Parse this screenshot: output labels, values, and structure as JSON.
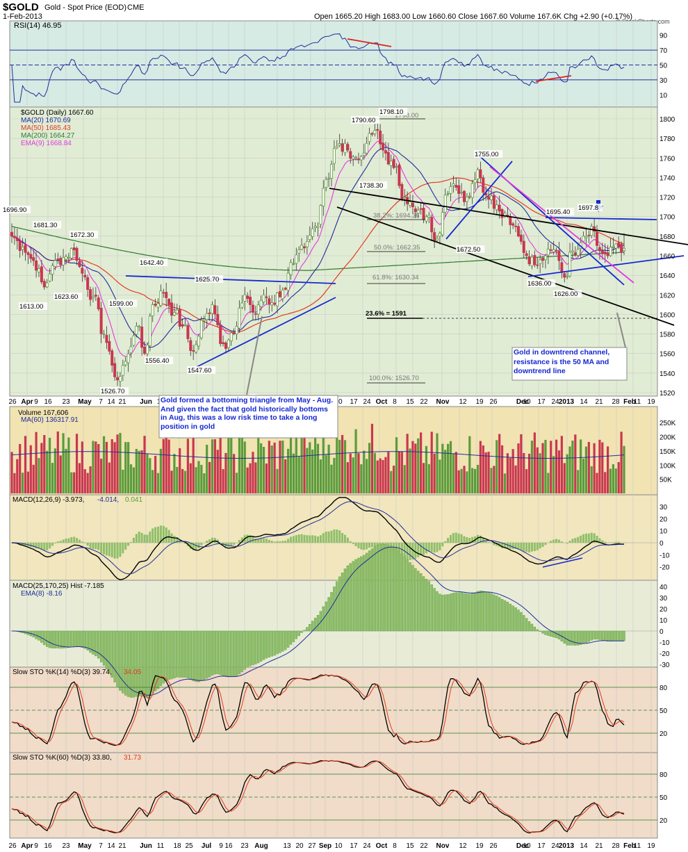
{
  "header": {
    "symbol": "$GOLD",
    "name": "Gold - Spot Price (EOD)",
    "exchange": "CME",
    "date": "1-Feb-2013",
    "ohlc_text": "Open 1665.20  High 1683.00  Low 1660.60  Close 1667.60  Volume 167.6K  Chg +2.90 (+0.17%)",
    "credit": "© StockCharts.com"
  },
  "colors": {
    "panel_rsi": "#d6ebe3",
    "panel_price": "#e1ecd4",
    "panel_vol": "#f1e3b2",
    "panel_macd": "#f1e6bd",
    "panel_hist": "#e8ecd7",
    "panel_sto": "#f0dcc8",
    "up": "#5b9b3c",
    "down": "#c9374f",
    "ma20": "#1f2d9c",
    "ma50": "#e23a22",
    "ma200": "#2d7a2d",
    "ema9": "#e03be0",
    "annot_blue": "#1428d0",
    "annot_red": "#e01e1e"
  },
  "panels": {
    "rsi": {
      "label": "RSI(14) 46.95",
      "levels": [
        70,
        50,
        30
      ],
      "ticks": [
        "90",
        "70",
        "50",
        "30",
        "10"
      ]
    },
    "price": {
      "legend": [
        {
          "text": "$GOLD (Daily) 1667.60",
          "color": "#000000"
        },
        {
          "text": "MA(20) 1670.69",
          "color": "#1f2d9c"
        },
        {
          "text": "MA(50) 1685.43",
          "color": "#e23a22"
        },
        {
          "text": "MA(200) 1664.27",
          "color": "#2d7a2d"
        },
        {
          "text": "EMA(9) 1668.84",
          "color": "#e03be0"
        }
      ],
      "y_ticks": [
        "1800",
        "1780",
        "1760",
        "1740",
        "1720",
        "1700",
        "1680",
        "1660",
        "1640",
        "1620",
        "1600",
        "1580",
        "1560",
        "1540",
        "1520"
      ],
      "ylim": [
        1510,
        1810
      ]
    },
    "volume": {
      "label1": "Volume 167,606",
      "label2": "MA(60) 136317.91",
      "ticks": [
        "250K",
        "200K",
        "150K",
        "100K",
        "50K"
      ]
    },
    "macd": {
      "label_a": "MACD(12,26,9) -3.973,",
      "label_b": "-4.014,",
      "label_c": "0.041",
      "ticks": [
        "30",
        "20",
        "10",
        "0",
        "-10",
        "-20"
      ]
    },
    "macd2": {
      "label1": "MACD(25,170,25) Hist -7.185",
      "label2": "EMA(8) -8.16",
      "ticks": [
        "40",
        "30",
        "20",
        "10",
        "0",
        "-10",
        "-20",
        "-30"
      ]
    },
    "sto14": {
      "label_a": "Slow STO %K(14) %D(3) 39.74,",
      "label_b": "34.05",
      "ticks": [
        "80",
        "50",
        "20"
      ]
    },
    "sto60": {
      "label_a": "Slow STO %K(60) %D(3) 33.80,",
      "label_b": "31.73",
      "ticks": [
        "80",
        "50",
        "20"
      ]
    }
  },
  "x_axis_labels": [
    "26",
    "Apr",
    "9",
    "16",
    "23",
    "May",
    "7",
    "14",
    "21",
    "Jun",
    "11",
    "18",
    "25",
    "Jul",
    "9",
    "16",
    "23",
    "Aug",
    "13",
    "20",
    "27",
    "Sep",
    "10",
    "17",
    "24",
    "Oct",
    "8",
    "15",
    "22",
    "Nov",
    "12",
    "19",
    "26",
    "Dec",
    "10",
    "17",
    "24",
    "2013",
    "14",
    "21",
    "28",
    "Feb",
    "11",
    "19"
  ],
  "annotations": {
    "price_labels": [
      "1696.90",
      "1681.30",
      "1672.30",
      "1613.00",
      "1623.60",
      "1642.40",
      "1599.00",
      "1625.70",
      "1556.40",
      "1547.60",
      "1526.70",
      "1790.60",
      "1798.10",
      "1738.30",
      "1755.00",
      "1672.50",
      "1695.40",
      "1697.8",
      "1636.00",
      "1626.00"
    ],
    "fib_labels": [
      "1798.00",
      "38.2%: 1694.36",
      "50.0%: 1662.35",
      "61.8%: 1630.34",
      "23.6% = 1591",
      "100.0%: 1526.70"
    ],
    "note1": "Gold formed a bottoming triangle from May - Aug.  And given the fact that gold historically bottoms in Aug, this was a low risk time to take a long position in gold",
    "note2": "Gold in downtrend channel, resistance is the 50 MA and downtrend line"
  },
  "chart_data": {
    "type": "candlestick",
    "title": "$GOLD Gold - Spot Price (EOD) CME",
    "period": "Daily, late Mar 2012 - 1-Feb-2013",
    "last": {
      "open": 1665.2,
      "high": 1683.0,
      "low": 1660.6,
      "close": 1667.6,
      "volume": 167606,
      "change": 2.9,
      "change_pct": 0.17
    },
    "anchors": [
      {
        "bar": 0,
        "close": 1680
      },
      {
        "bar": 4,
        "close": 1669
      },
      {
        "bar": 8,
        "close": 1655
      },
      {
        "bar": 12,
        "close": 1628
      },
      {
        "bar": 15,
        "close": 1650
      },
      {
        "bar": 19,
        "close": 1658
      },
      {
        "bar": 23,
        "close": 1666
      },
      {
        "bar": 26,
        "close": 1642
      },
      {
        "bar": 30,
        "close": 1618
      },
      {
        "bar": 34,
        "close": 1580
      },
      {
        "bar": 37,
        "close": 1548
      },
      {
        "bar": 39,
        "close": 1533
      },
      {
        "bar": 42,
        "close": 1552
      },
      {
        "bar": 46,
        "close": 1588
      },
      {
        "bar": 49,
        "close": 1560
      },
      {
        "bar": 52,
        "close": 1610
      },
      {
        "bar": 56,
        "close": 1622
      },
      {
        "bar": 60,
        "close": 1602
      },
      {
        "bar": 63,
        "close": 1588
      },
      {
        "bar": 67,
        "close": 1563
      },
      {
        "bar": 71,
        "close": 1595
      },
      {
        "bar": 74,
        "close": 1610
      },
      {
        "bar": 78,
        "close": 1570
      },
      {
        "bar": 82,
        "close": 1580
      },
      {
        "bar": 86,
        "close": 1620
      },
      {
        "bar": 90,
        "close": 1600
      },
      {
        "bar": 93,
        "close": 1620
      },
      {
        "bar": 96,
        "close": 1612
      },
      {
        "bar": 100,
        "close": 1625
      },
      {
        "bar": 104,
        "close": 1652
      },
      {
        "bar": 108,
        "close": 1668
      },
      {
        "bar": 112,
        "close": 1690
      },
      {
        "bar": 116,
        "close": 1738
      },
      {
        "bar": 120,
        "close": 1772
      },
      {
        "bar": 124,
        "close": 1768
      },
      {
        "bar": 128,
        "close": 1758
      },
      {
        "bar": 131,
        "close": 1775
      },
      {
        "bar": 134,
        "close": 1788
      },
      {
        "bar": 137,
        "close": 1768
      },
      {
        "bar": 141,
        "close": 1750
      },
      {
        "bar": 145,
        "close": 1720
      },
      {
        "bar": 149,
        "close": 1705
      },
      {
        "bar": 153,
        "close": 1700
      },
      {
        "bar": 157,
        "close": 1678
      },
      {
        "bar": 160,
        "close": 1722
      },
      {
        "bar": 164,
        "close": 1730
      },
      {
        "bar": 168,
        "close": 1720
      },
      {
        "bar": 172,
        "close": 1748
      },
      {
        "bar": 175,
        "close": 1722
      },
      {
        "bar": 179,
        "close": 1712
      },
      {
        "bar": 183,
        "close": 1700
      },
      {
        "bar": 186,
        "close": 1690
      },
      {
        "bar": 190,
        "close": 1660
      },
      {
        "bar": 194,
        "close": 1650
      },
      {
        "bar": 197,
        "close": 1660
      },
      {
        "bar": 201,
        "close": 1665
      },
      {
        "bar": 204,
        "close": 1638
      },
      {
        "bar": 207,
        "close": 1665
      },
      {
        "bar": 211,
        "close": 1680
      },
      {
        "bar": 214,
        "close": 1690
      },
      {
        "bar": 217,
        "close": 1665
      },
      {
        "bar": 220,
        "close": 1660
      },
      {
        "bar": 223,
        "close": 1672
      },
      {
        "bar": 226,
        "close": 1667.6
      }
    ],
    "overlays": [
      {
        "name": "MA(20)",
        "last": 1670.69
      },
      {
        "name": "MA(50)",
        "last": 1685.43
      },
      {
        "name": "MA(200)",
        "last": 1664.27
      },
      {
        "name": "EMA(9)",
        "last": 1668.84
      }
    ],
    "ylim": [
      1510,
      1810
    ]
  }
}
